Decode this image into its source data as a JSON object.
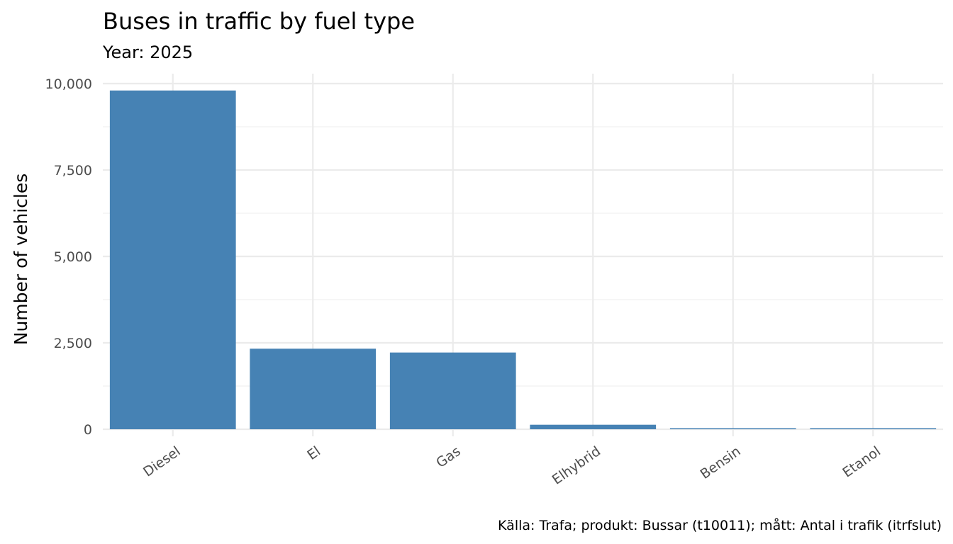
{
  "chart_data": {
    "type": "bar",
    "title": "Buses in traffic by fuel type",
    "subtitle": "Year: 2025",
    "xlabel": "",
    "ylabel": "Number of vehicles",
    "caption": "Källa: Trafa; produkt: Bussar (t10011); mått: Antal i trafik (itrfslut)",
    "categories": [
      "Diesel",
      "El",
      "Gas",
      "Elhybrid",
      "Bensin",
      "Etanol"
    ],
    "values": [
      9800,
      2330,
      2220,
      130,
      30,
      10
    ],
    "ylim": [
      0,
      10000
    ],
    "yticks": [
      0,
      2500,
      5000,
      7500,
      10000
    ],
    "ytick_labels": [
      "0",
      "2,500",
      "5,000",
      "7,500",
      "10,000"
    ],
    "bar_color": "#4682B4",
    "grid": true,
    "legend": "none"
  }
}
